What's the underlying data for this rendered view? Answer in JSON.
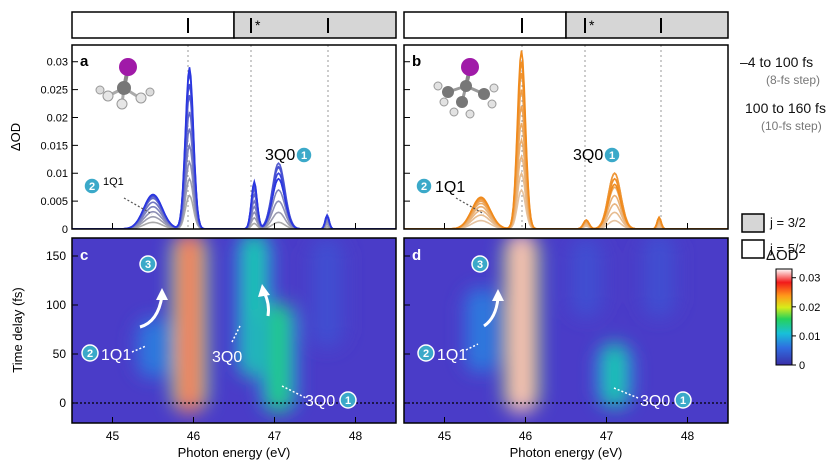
{
  "figure": {
    "panels": {
      "a": {
        "letter": "a"
      },
      "b": {
        "letter": "b"
      },
      "c": {
        "letter": "c"
      },
      "d": {
        "letter": "d"
      }
    },
    "axes": {
      "top_ylabel": "ΔOD",
      "bottom_ylabel": "Time delay (fs)",
      "xlabel": "Photon energy (eV)",
      "top_yticks": [
        "0",
        "0.005",
        "0.01",
        "0.015",
        "0.02",
        "0.025",
        "0.03"
      ],
      "bottom_yticks": [
        "0",
        "50",
        "100",
        "150"
      ],
      "xticks": [
        "45",
        "46",
        "47",
        "48"
      ]
    },
    "annotations": {
      "state_2_1Q1": "1Q1",
      "state_3Q0": "3Q0",
      "badge_1": "1",
      "badge_2": "2",
      "badge_3": "3",
      "star": "*"
    },
    "legend": {
      "range1": "–4 to 100 fs",
      "range1_step": "(8-fs step)",
      "range2": "100 to 160 fs",
      "range2_step": "(10-fs step)",
      "j_32": "j = 3/2",
      "j_52": "j = 5/2"
    },
    "colorbar": {
      "title": "ΔOD",
      "ticks": [
        "0",
        "0.01",
        "0.02",
        "0.03"
      ]
    }
  },
  "colors": {
    "panel_a_lines": "#2a36e0",
    "panel_b_lines": "#f08a1c",
    "badge": "#3ba9c9",
    "map_background": "#4a3cc8",
    "j32_box": "#d6d6d6"
  },
  "chart_data": [
    {
      "type": "line",
      "panel": "a",
      "molecule": "methyl iodide (iodine atom shown purple)",
      "xlabel": "",
      "ylabel": "ΔOD",
      "xlim": [
        44.5,
        48.5
      ],
      "ylim": [
        0,
        0.033
      ],
      "peaks_eV": [
        45.5,
        45.95,
        46.75,
        47.05,
        47.65
      ],
      "series": [
        {
          "amplitudes": [
            0.0012,
            0.006,
            0.001,
            0.0012,
            0.0004
          ]
        },
        {
          "amplitudes": [
            0.0022,
            0.009,
            0.002,
            0.003,
            0.0008
          ]
        },
        {
          "amplitudes": [
            0.0031,
            0.012,
            0.003,
            0.005,
            0.0012
          ]
        },
        {
          "amplitudes": [
            0.004,
            0.015,
            0.004,
            0.007,
            0.0016
          ]
        },
        {
          "amplitudes": [
            0.0048,
            0.018,
            0.005,
            0.009,
            0.002
          ]
        },
        {
          "amplitudes": [
            0.0055,
            0.021,
            0.0062,
            0.011,
            0.0023
          ]
        },
        {
          "amplitudes": [
            0.0058,
            0.024,
            0.0072,
            0.0118,
            0.0025
          ]
        },
        {
          "amplitudes": [
            0.006,
            0.026,
            0.0078,
            0.0112,
            0.0025
          ]
        },
        {
          "amplitudes": [
            0.0061,
            0.028,
            0.0082,
            0.01,
            0.0024
          ]
        },
        {
          "amplitudes": [
            0.0062,
            0.029,
            0.0085,
            0.009,
            0.0023
          ]
        }
      ]
    },
    {
      "type": "line",
      "panel": "b",
      "molecule": "tert-butyl iodide (iodine atom shown purple)",
      "xlabel": "",
      "ylabel": "",
      "xlim": [
        44.5,
        48.5
      ],
      "ylim": [
        0,
        0.033
      ],
      "peaks_eV": [
        45.45,
        45.95,
        46.75,
        47.1,
        47.65
      ],
      "series": [
        {
          "amplitudes": [
            0.0015,
            0.007,
            0.0005,
            0.0015,
            0.0003
          ]
        },
        {
          "amplitudes": [
            0.0025,
            0.01,
            0.0008,
            0.003,
            0.0006
          ]
        },
        {
          "amplitudes": [
            0.0033,
            0.013,
            0.001,
            0.0045,
            0.0009
          ]
        },
        {
          "amplitudes": [
            0.004,
            0.016,
            0.0012,
            0.006,
            0.0012
          ]
        },
        {
          "amplitudes": [
            0.0046,
            0.019,
            0.0013,
            0.0075,
            0.0015
          ]
        },
        {
          "amplitudes": [
            0.005,
            0.022,
            0.0014,
            0.009,
            0.0017
          ]
        },
        {
          "amplitudes": [
            0.0053,
            0.025,
            0.0015,
            0.01,
            0.0019
          ]
        },
        {
          "amplitudes": [
            0.0055,
            0.028,
            0.0016,
            0.01,
            0.002
          ]
        },
        {
          "amplitudes": [
            0.0056,
            0.03,
            0.0016,
            0.009,
            0.0021
          ]
        },
        {
          "amplitudes": [
            0.0057,
            0.032,
            0.0016,
            0.008,
            0.0021
          ]
        }
      ]
    },
    {
      "type": "heatmap",
      "panel": "c",
      "xlabel": "Photon energy (eV)",
      "ylabel": "Time delay (fs)",
      "xlim": [
        44.5,
        48.5
      ],
      "ylim": [
        -25,
        160
      ],
      "zlim": [
        0,
        0.033
      ],
      "features": [
        {
          "center_eV": 45.95,
          "t_start_fs": -15,
          "t_end_fs": 165,
          "peak_dOD": 0.03
        },
        {
          "center_eV": 46.75,
          "t_start_fs": 20,
          "t_end_fs": 165,
          "peak_dOD": 0.012
        },
        {
          "center_eV": 47.05,
          "t_start_fs": -15,
          "t_end_fs": 95,
          "peak_dOD": 0.014
        },
        {
          "center_eV": 45.5,
          "t_start_fs": 20,
          "t_end_fs": 80,
          "peak_dOD": 0.006
        },
        {
          "center_eV": 47.65,
          "t_start_fs": 50,
          "t_end_fs": 160,
          "peak_dOD": 0.002
        }
      ]
    },
    {
      "type": "heatmap",
      "panel": "d",
      "xlabel": "Photon energy (eV)",
      "ylabel": "",
      "xlim": [
        44.5,
        48.5
      ],
      "ylim": [
        -25,
        160
      ],
      "zlim": [
        0,
        0.033
      ],
      "features": [
        {
          "center_eV": 45.95,
          "t_start_fs": -15,
          "t_end_fs": 165,
          "peak_dOD": 0.032
        },
        {
          "center_eV": 47.1,
          "t_start_fs": -10,
          "t_end_fs": 55,
          "peak_dOD": 0.012
        },
        {
          "center_eV": 45.45,
          "t_start_fs": 25,
          "t_end_fs": 110,
          "peak_dOD": 0.006
        },
        {
          "center_eV": 46.75,
          "t_start_fs": 80,
          "t_end_fs": 160,
          "peak_dOD": 0.002
        },
        {
          "center_eV": 47.65,
          "t_start_fs": 80,
          "t_end_fs": 165,
          "peak_dOD": 0.002
        }
      ]
    }
  ]
}
